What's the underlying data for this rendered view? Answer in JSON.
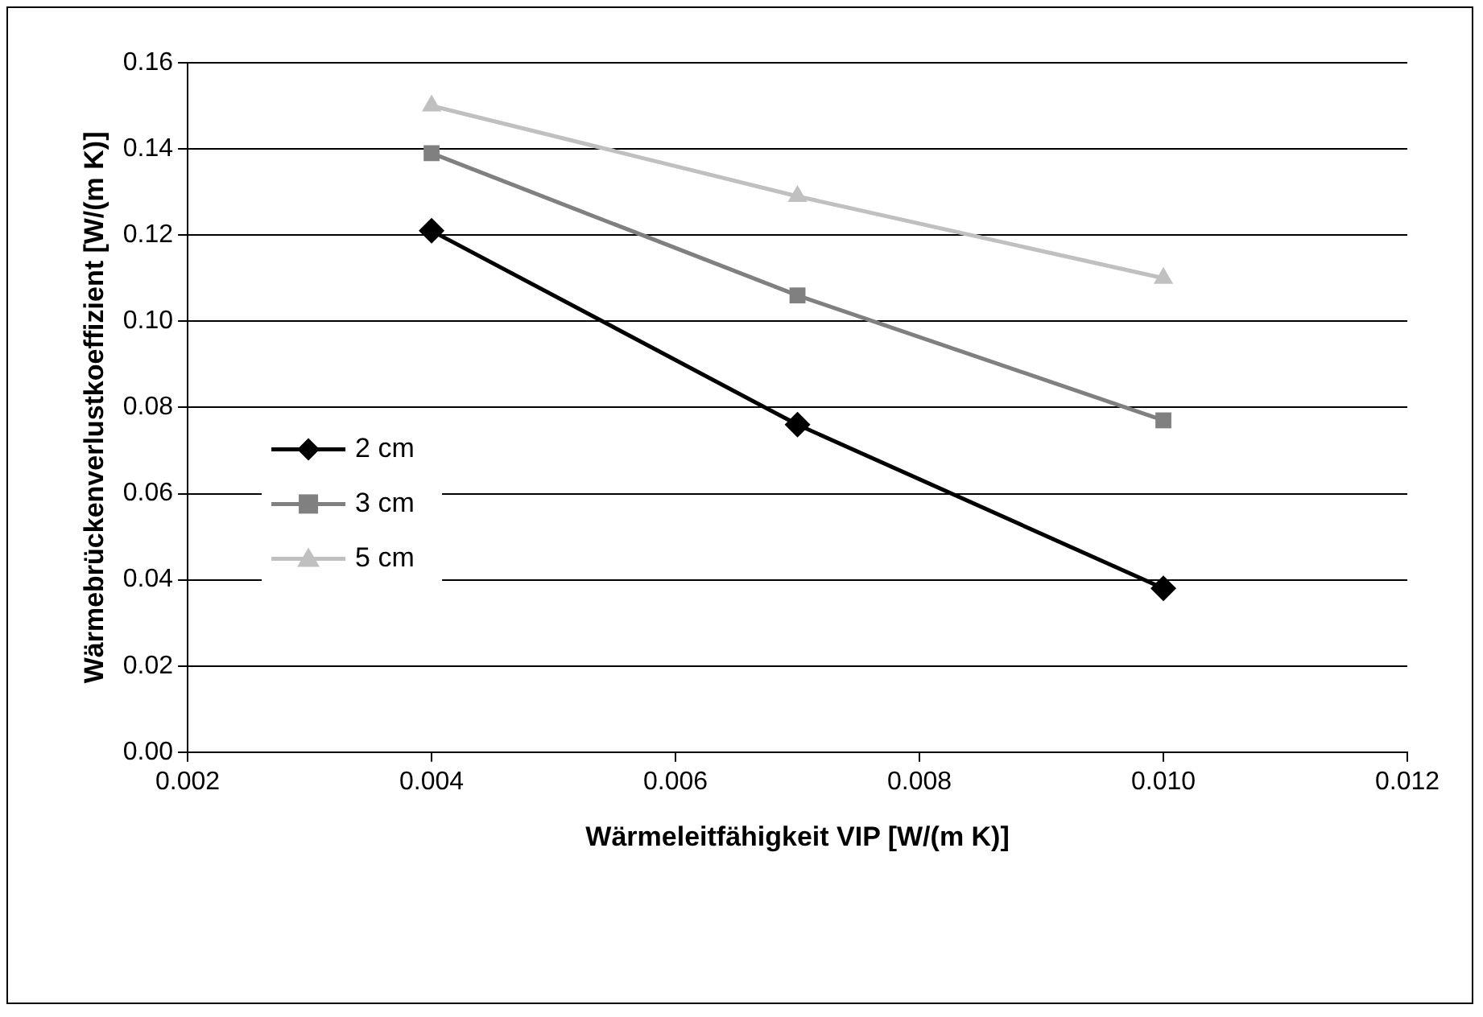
{
  "chart_data": {
    "type": "line",
    "xlabel": "Wärmeleitfähigkeit VIP [W/(m K)]",
    "ylabel": "Wärmebrückenverlustkoeffizient [W/(m K)]",
    "x": [
      0.004,
      0.007,
      0.01
    ],
    "series": [
      {
        "name": "2 cm",
        "color": "#000000",
        "marker": "diamond",
        "values": [
          0.121,
          0.076,
          0.038
        ]
      },
      {
        "name": "3 cm",
        "color": "#808080",
        "marker": "square",
        "values": [
          0.139,
          0.106,
          0.077
        ]
      },
      {
        "name": "5 cm",
        "color": "#c0c0c0",
        "marker": "triangle",
        "values": [
          0.15,
          0.129,
          0.11
        ]
      }
    ],
    "xlim": [
      0.002,
      0.012
    ],
    "xticks": [
      {
        "value": 0.002,
        "label": "0.002"
      },
      {
        "value": 0.004,
        "label": "0.004"
      },
      {
        "value": 0.006,
        "label": "0.006"
      },
      {
        "value": 0.008,
        "label": "0.008"
      },
      {
        "value": 0.01,
        "label": "0.010"
      },
      {
        "value": 0.012,
        "label": "0.012"
      }
    ],
    "ylim": [
      0,
      0.16
    ],
    "yticks": [
      {
        "value": 0,
        "label": "0.00"
      },
      {
        "value": 0.02,
        "label": "0.02"
      },
      {
        "value": 0.04,
        "label": "0.04"
      },
      {
        "value": 0.06,
        "label": "0.06"
      },
      {
        "value": 0.08,
        "label": "0.08"
      },
      {
        "value": 0.1,
        "label": "0.10"
      },
      {
        "value": 0.12,
        "label": "0.12"
      },
      {
        "value": 0.14,
        "label": "0.14"
      },
      {
        "value": 0.16,
        "label": "0.16"
      }
    ],
    "grid": "y",
    "legend": "left",
    "line_style": "solid"
  }
}
